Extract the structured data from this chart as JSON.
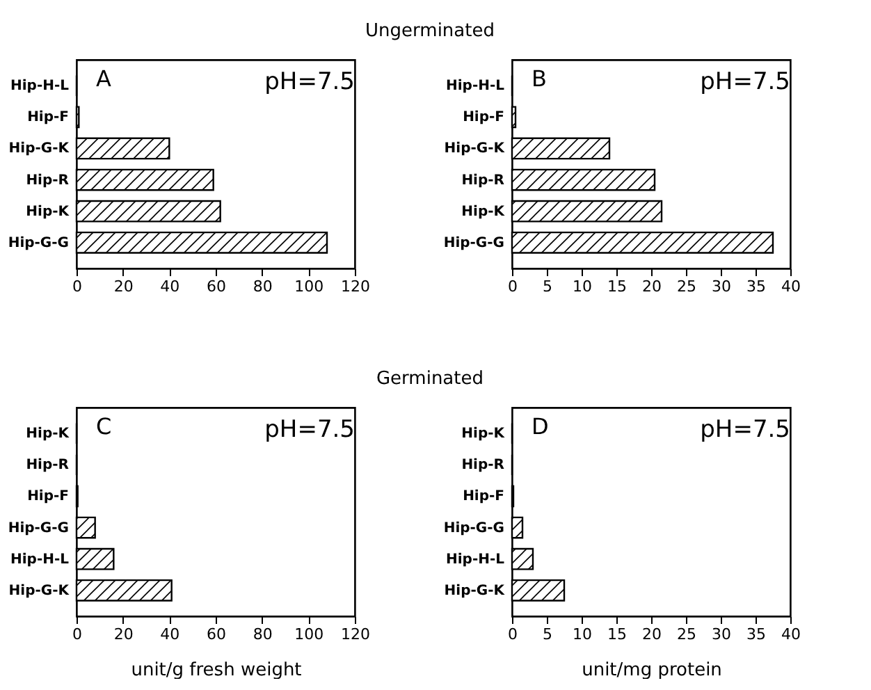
{
  "chart_data": [
    {
      "type": "bar",
      "orientation": "horizontal",
      "title": "Ungerminated",
      "categories": [
        "Hip-H-L",
        "Hip-F",
        "Hip-G-K",
        "Hip-R",
        "Hip-K",
        "Hip-G-G"
      ],
      "values": [
        0,
        1,
        40,
        59,
        62,
        108
      ],
      "color": "#000000",
      "xlim": [
        0,
        120
      ],
      "xticks": [
        0,
        20,
        40,
        60,
        80,
        100,
        120
      ],
      "annotations": [
        "A",
        "pH=7.5"
      ],
      "grid": false
    },
    {
      "type": "bar",
      "orientation": "horizontal",
      "categories": [
        "Hip-H-L",
        "Hip-F",
        "Hip-G-K",
        "Hip-R",
        "Hip-K",
        "Hip-G-G"
      ],
      "values": [
        0,
        0.5,
        14,
        20.5,
        21.5,
        37.5
      ],
      "color": "#000000",
      "xlim": [
        0,
        40
      ],
      "xticks": [
        0,
        5,
        10,
        15,
        20,
        25,
        30,
        35,
        40
      ],
      "annotations": [
        "B",
        "pH=7.5"
      ],
      "grid": false
    },
    {
      "type": "bar",
      "orientation": "horizontal",
      "title": "Germinated",
      "xlabel": "unit/g fresh weight",
      "categories": [
        "Hip-K",
        "Hip-R",
        "Hip-F",
        "Hip-G-G",
        "Hip-H-L",
        "Hip-G-K"
      ],
      "values": [
        0,
        0,
        0.5,
        8,
        16,
        41
      ],
      "color": "#000000",
      "xlim": [
        0,
        120
      ],
      "xticks": [
        0,
        20,
        40,
        60,
        80,
        100,
        120
      ],
      "annotations": [
        "C",
        "pH=7.5"
      ],
      "grid": false
    },
    {
      "type": "bar",
      "orientation": "horizontal",
      "xlabel": "unit/mg protein",
      "categories": [
        "Hip-K",
        "Hip-R",
        "Hip-F",
        "Hip-G-G",
        "Hip-H-L",
        "Hip-G-K"
      ],
      "values": [
        0,
        0,
        0.2,
        1.5,
        3,
        7.5
      ],
      "color": "#000000",
      "xlim": [
        0,
        40
      ],
      "xticks": [
        0,
        5,
        10,
        15,
        20,
        25,
        30,
        35,
        40
      ],
      "annotations": [
        "D",
        "pH=7.5"
      ],
      "grid": false
    }
  ]
}
